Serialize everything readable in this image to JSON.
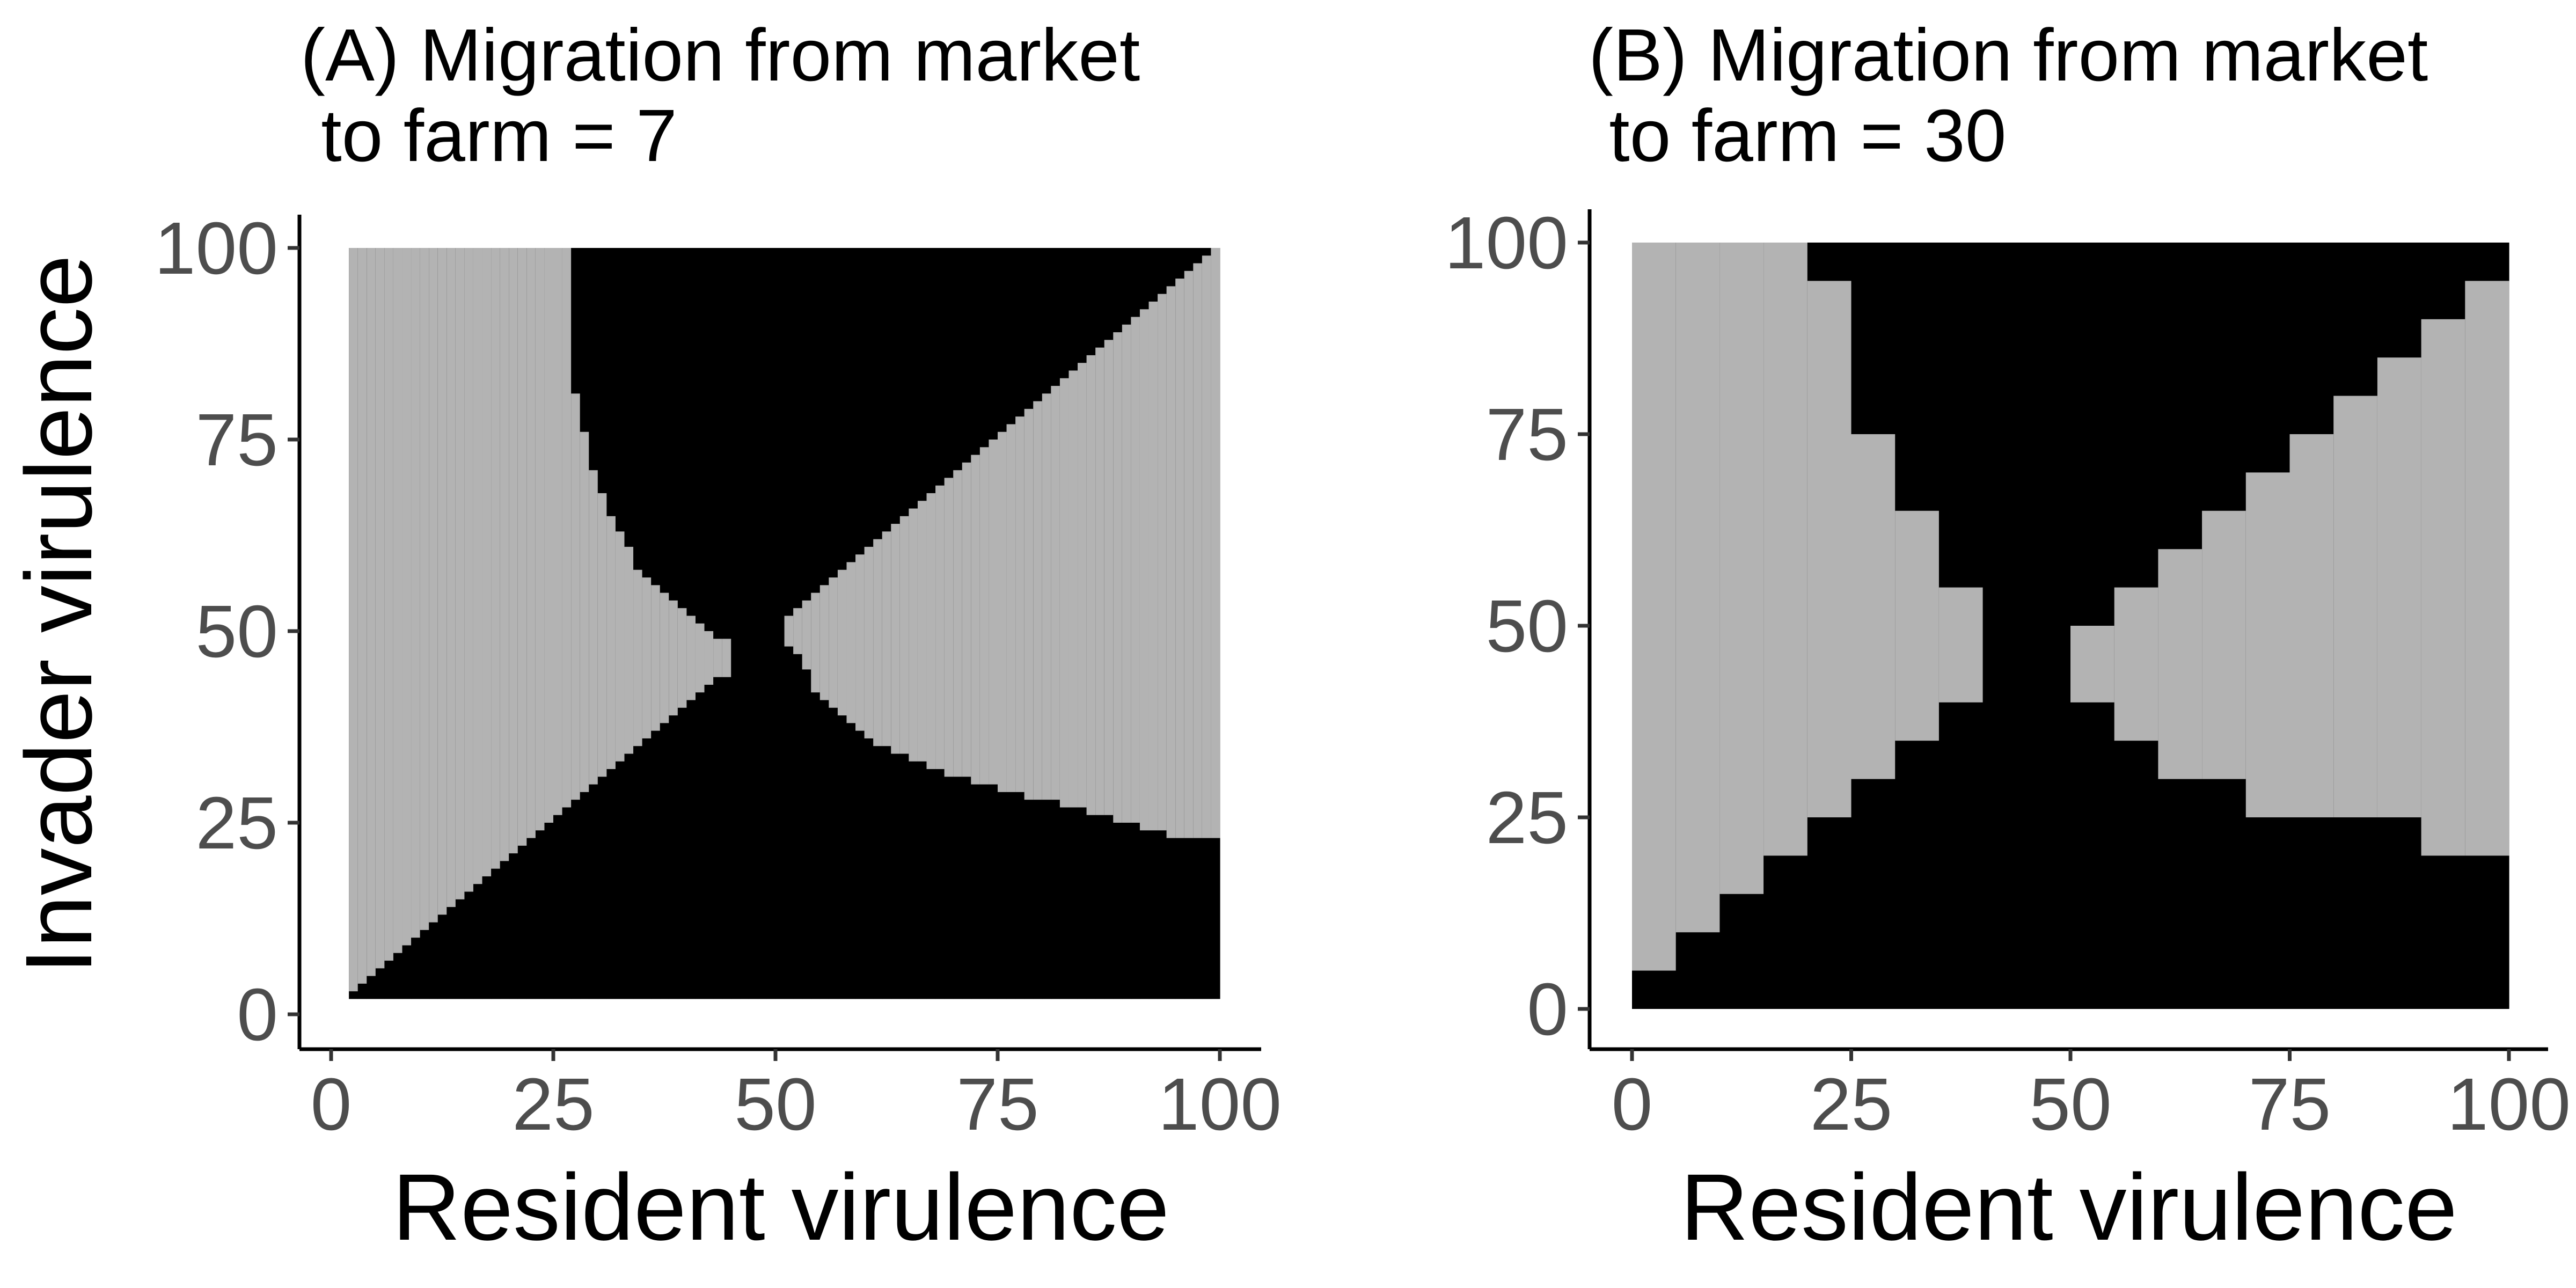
{
  "chart_data": [
    {
      "type": "heatmap",
      "title": "(A) Migration from market\n to farm = 7",
      "xlabel": "Resident virulence",
      "ylabel": "Invader virulence",
      "xlim": [
        0,
        100
      ],
      "ylim": [
        0,
        100
      ],
      "x_ticks": [
        0,
        25,
        50,
        75,
        100
      ],
      "y_ticks": [
        0,
        25,
        50,
        75,
        100
      ],
      "grid": false,
      "legend": "none",
      "cell_size": 1,
      "x_range": [
        2,
        100
      ],
      "y_range": [
        2,
        100
      ],
      "left_boundary": {
        "description": "cells with invader value above this curve (left region) are grey",
        "points": [
          [
            2,
            2
          ],
          [
            10,
            10
          ],
          [
            20,
            20
          ],
          [
            30,
            30
          ],
          [
            40,
            40
          ],
          [
            44,
            44
          ],
          [
            44,
            49
          ],
          [
            40,
            52
          ],
          [
            35,
            57
          ],
          [
            30,
            69
          ],
          [
            27,
            83
          ],
          [
            25,
            100
          ]
        ]
      },
      "right_boundary": {
        "description": "cells between lower and upper curves (right region) are grey",
        "lower_points": [
          [
            52,
            48
          ],
          [
            55,
            41
          ],
          [
            60,
            36
          ],
          [
            70,
            31
          ],
          [
            80,
            28
          ],
          [
            90,
            25
          ],
          [
            95,
            23
          ],
          [
            100,
            23
          ]
        ],
        "upper_points": [
          [
            52,
            52
          ],
          [
            60,
            60
          ],
          [
            70,
            70
          ],
          [
            80,
            80
          ],
          [
            90,
            90
          ],
          [
            100,
            100
          ]
        ]
      },
      "colors": {
        "grey_region": "#b3b3b3",
        "black_region": "#000000"
      }
    },
    {
      "type": "heatmap",
      "title": "(B) Migration from market\n to farm = 30",
      "xlabel": "Resident virulence",
      "ylabel": "",
      "xlim": [
        0,
        100
      ],
      "ylim": [
        0,
        100
      ],
      "x_ticks": [
        0,
        25,
        50,
        75,
        100
      ],
      "y_ticks": [
        0,
        25,
        50,
        75,
        100
      ],
      "grid": false,
      "legend": "none",
      "cell_size": 5,
      "x_range": [
        0,
        100
      ],
      "y_range": [
        0,
        100
      ],
      "columns": [
        {
          "x": [
            0,
            5
          ],
          "grey": [
            [
              5,
              100
            ]
          ]
        },
        {
          "x": [
            5,
            10
          ],
          "grey": [
            [
              10,
              100
            ]
          ]
        },
        {
          "x": [
            10,
            15
          ],
          "grey": [
            [
              15,
              100
            ]
          ]
        },
        {
          "x": [
            15,
            20
          ],
          "grey": [
            [
              20,
              100
            ]
          ]
        },
        {
          "x": [
            20,
            25
          ],
          "grey": [
            [
              25,
              95
            ]
          ]
        },
        {
          "x": [
            25,
            30
          ],
          "grey": [
            [
              30,
              75
            ]
          ]
        },
        {
          "x": [
            30,
            35
          ],
          "grey": [
            [
              35,
              65
            ]
          ]
        },
        {
          "x": [
            35,
            40
          ],
          "grey": [
            [
              40,
              55
            ]
          ]
        },
        {
          "x": [
            40,
            50
          ],
          "grey": []
        },
        {
          "x": [
            50,
            55
          ],
          "grey": [
            [
              40,
              50
            ]
          ]
        },
        {
          "x": [
            55,
            60
          ],
          "grey": [
            [
              35,
              55
            ]
          ]
        },
        {
          "x": [
            60,
            65
          ],
          "grey": [
            [
              30,
              60
            ]
          ]
        },
        {
          "x": [
            65,
            70
          ],
          "grey": [
            [
              30,
              65
            ]
          ]
        },
        {
          "x": [
            70,
            75
          ],
          "grey": [
            [
              25,
              70
            ]
          ]
        },
        {
          "x": [
            75,
            80
          ],
          "grey": [
            [
              25,
              75
            ]
          ]
        },
        {
          "x": [
            80,
            85
          ],
          "grey": [
            [
              25,
              80
            ]
          ]
        },
        {
          "x": [
            85,
            90
          ],
          "grey": [
            [
              25,
              85
            ]
          ]
        },
        {
          "x": [
            90,
            95
          ],
          "grey": [
            [
              20,
              90
            ]
          ]
        },
        {
          "x": [
            95,
            100
          ],
          "grey": [
            [
              20,
              95
            ]
          ]
        }
      ],
      "colors": {
        "grey_region": "#b3b3b3",
        "black_region": "#000000"
      }
    }
  ]
}
